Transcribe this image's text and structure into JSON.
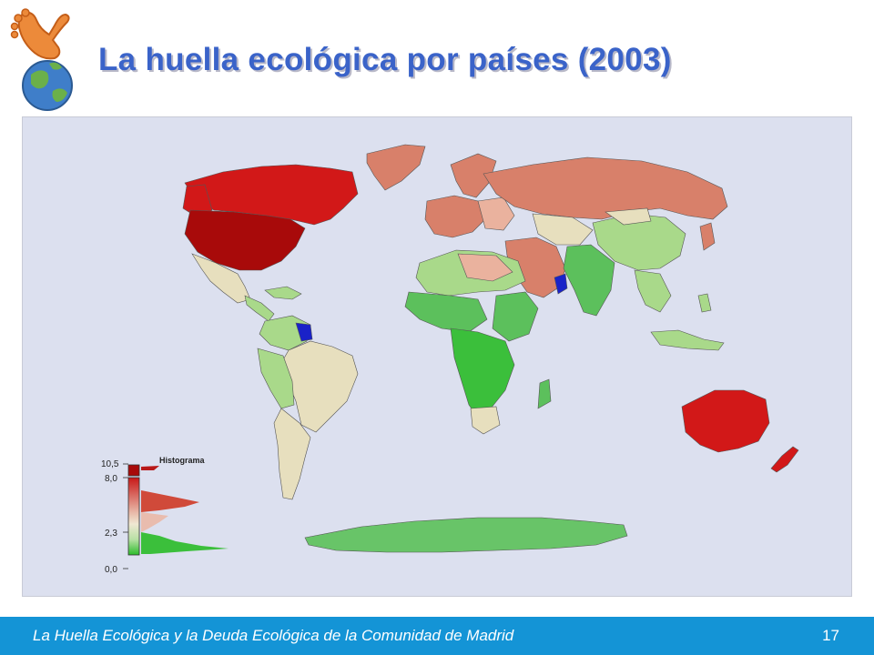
{
  "slide": {
    "title": "La huella ecológica por países (2003)",
    "footer_text": "La Huella Ecológica y la Deuda Ecológica de la Comunidad de Madrid",
    "page_number": "17"
  },
  "legend": {
    "histogram_label": "Histograma",
    "ticks": [
      "10,5",
      "8,0",
      "2,3",
      "0,0"
    ]
  },
  "colors": {
    "ocean": "#dce0ef",
    "very_high": "#a80a0a",
    "high": "#d21818",
    "medium_high": "#d8806a",
    "medium": "#eab29e",
    "neutral": "#e7dfbe",
    "low": "#a9d98a",
    "very_low": "#5cc05c",
    "min": "#3bbf3b",
    "no_data": "#1a22c8",
    "title": "#3a63c9",
    "footer": "#1494d6"
  },
  "logo": {
    "icon": "foot-on-globe-icon"
  }
}
